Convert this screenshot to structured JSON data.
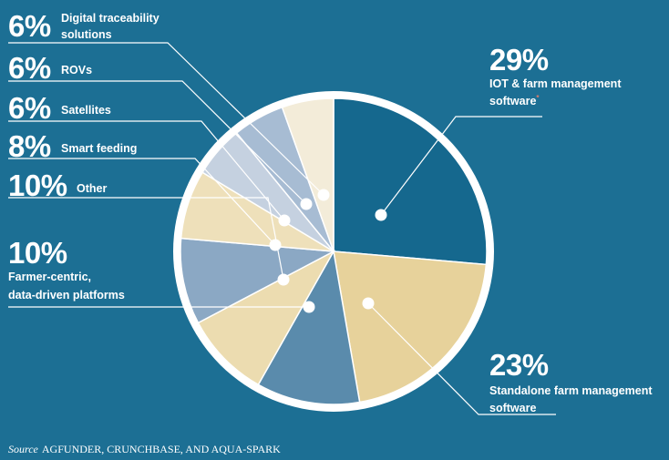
{
  "chart_data": {
    "type": "pie",
    "title": "",
    "slices": [
      {
        "label": "IOT & farm management software",
        "value": 29,
        "value_label": "29%",
        "color": "#15688e",
        "footnote_mark": "*"
      },
      {
        "label": "Standalone farm management software",
        "value": 23,
        "value_label": "23%",
        "color": "#e7d29b"
      },
      {
        "label": "",
        "value": 12,
        "value_label": "",
        "color": "#5a8bac"
      },
      {
        "label": "Farmer-centric, data-driven platforms",
        "value": 10,
        "value_label": "10%",
        "color": "#ecdcb0"
      },
      {
        "label": "Other",
        "value": 10,
        "value_label": "10%",
        "color": "#8ba8c4"
      },
      {
        "label": "Smart feeding",
        "value": 8,
        "value_label": "8%",
        "color": "#eee0ba"
      },
      {
        "label": "Satellites",
        "value": 6,
        "value_label": "6%",
        "color": "#c5d1e0"
      },
      {
        "label": "ROVs",
        "value": 6,
        "value_label": "6%",
        "color": "#a7bcd3"
      },
      {
        "label": "Digital traceability solutions",
        "value": 6,
        "value_label": "6%",
        "color": "#f3ecd9"
      }
    ],
    "text_labels": {
      "iot_line1": "IOT & farm management",
      "iot_line2": "software",
      "standalone_line1": "Standalone farm management",
      "standalone_line2": "software",
      "farmer_line1": "Farmer-centric,",
      "farmer_line2": "data-driven platforms",
      "digital_line1": "Digital traceability",
      "digital_line2": "solutions"
    },
    "legend": "none"
  },
  "source": {
    "prefix": "Source",
    "text": "AGFUNDER, CRUNCHBASE, AND AQUA-SPARK"
  },
  "colors": {
    "background": "#1c6f94",
    "ring": "#ffffff"
  }
}
